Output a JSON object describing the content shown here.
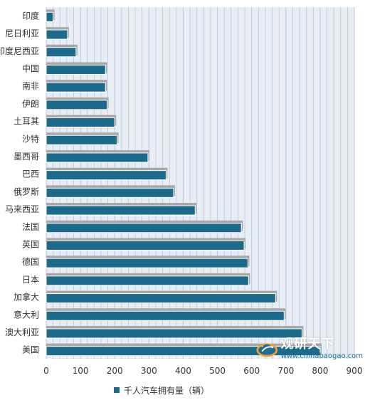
{
  "colors": {
    "bar": "#1b6a8c",
    "shadow": "#a8a8a8",
    "grid": "#b9c5d3",
    "plot_bg": "#e9eef6"
  },
  "chart_data": {
    "type": "bar",
    "orientation": "horizontal",
    "categories": [
      "印度",
      "尼日利亚",
      "印度尼西亚",
      "中国",
      "南非",
      "伊朗",
      "土耳其",
      "沙特",
      "墨西哥",
      "巴西",
      "俄罗斯",
      "马来西亚",
      "法国",
      "英国",
      "德国",
      "日本",
      "加拿大",
      "意大利",
      "澳大利亚",
      "美国"
    ],
    "series": [
      {
        "name": "千人汽车拥有量（辆）",
        "values": [
          20,
          62,
          87,
          173,
          173,
          178,
          200,
          207,
          297,
          350,
          372,
          435,
          570,
          578,
          589,
          591,
          670,
          695,
          747,
          800
        ]
      }
    ],
    "xlim": [
      0,
      900
    ],
    "xticks": [
      0,
      100,
      200,
      300,
      400,
      500,
      600,
      700,
      800,
      900
    ],
    "grid": true,
    "legend_position": "bottom"
  },
  "legend": {
    "label": "千人汽车拥有量（辆）"
  },
  "watermark": {
    "brand": "观研天下",
    "url": "www.chinabaogao.com"
  }
}
